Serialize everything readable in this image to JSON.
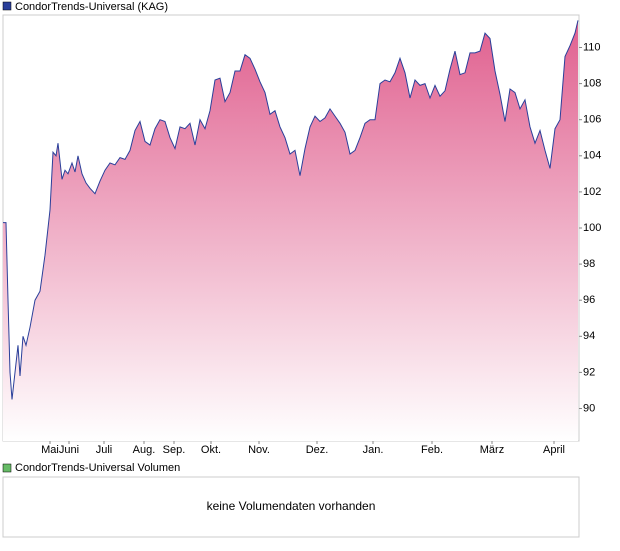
{
  "chart_data": {
    "type": "area",
    "x": [
      0,
      3,
      5,
      7,
      9,
      12,
      15,
      17,
      20,
      23,
      27,
      32,
      37,
      42,
      47,
      50,
      53,
      55,
      59,
      62,
      65,
      69,
      72,
      75,
      79,
      83,
      87,
      92,
      97,
      102,
      107,
      112,
      117,
      122,
      127,
      132,
      137,
      142,
      147,
      152,
      157,
      162,
      167,
      172,
      177,
      182,
      187,
      192,
      197,
      202,
      207,
      212,
      217,
      222,
      227,
      232,
      237,
      242,
      247,
      252,
      257,
      262,
      267,
      272,
      277,
      282,
      287,
      292,
      297,
      302,
      307,
      312,
      317,
      322,
      327,
      332,
      337,
      342,
      347,
      352,
      357,
      362,
      367,
      372,
      377,
      382,
      387,
      392,
      397,
      402,
      407,
      412,
      417,
      422,
      427,
      432,
      437,
      442,
      447,
      452,
      457,
      462,
      467,
      472,
      477,
      482,
      487,
      492,
      497,
      502,
      507,
      512,
      517,
      522,
      527,
      532,
      537,
      542,
      547,
      552,
      557,
      562,
      567,
      572,
      575
    ],
    "series": [
      {
        "name": "CondorTrends-Universal (KAG)",
        "color": "#2a3f9a",
        "values": [
          100.3,
          100.3,
          96,
          92,
          90.5,
          92,
          93.5,
          91.8,
          94,
          93.5,
          94.5,
          96,
          96.5,
          98.5,
          101,
          104.2,
          104,
          104.7,
          102.7,
          103.2,
          103,
          103.6,
          103.1,
          104,
          103,
          102.5,
          102.2,
          101.9,
          102.6,
          103.2,
          103.6,
          103.5,
          103.9,
          103.8,
          104.3,
          105.4,
          105.9,
          104.8,
          104.6,
          105.5,
          106,
          105.9,
          105,
          104.4,
          105.6,
          105.5,
          105.8,
          104.6,
          106,
          105.5,
          106.5,
          108.2,
          108.3,
          107,
          107.5,
          108.7,
          108.7,
          109.6,
          109.4,
          108.8,
          108.1,
          107.5,
          106.3,
          106.5,
          105.6,
          105,
          104.1,
          104.3,
          102.9,
          104.4,
          105.6,
          106.2,
          105.9,
          106.1,
          106.6,
          106.2,
          105.8,
          105.3,
          104.1,
          104.3,
          105,
          105.8,
          106,
          106,
          108,
          108.2,
          108.1,
          108.6,
          109.4,
          108.6,
          107.2,
          108.2,
          107.9,
          108,
          107.2,
          107.9,
          107.3,
          107.6,
          108.8,
          109.8,
          108.5,
          108.6,
          109.7,
          109.7,
          109.8,
          110.8,
          110.5,
          108.7,
          107.4,
          105.9,
          107.7,
          107.5,
          106.6,
          107.1,
          105.6,
          104.7,
          105.4,
          104.3,
          103.3,
          105.5,
          106,
          109.5,
          110.1,
          110.8,
          111.5
        ]
      }
    ],
    "fill_top": "#e0608f",
    "fill_bottom": "#ffffff",
    "xlim": [
      0,
      576
    ],
    "xticks": [
      {
        "value": 47,
        "label": "Mai"
      },
      {
        "value": 66,
        "label": "Juni"
      },
      {
        "value": 101,
        "label": "Juli"
      },
      {
        "value": 141,
        "label": "Aug."
      },
      {
        "value": 171,
        "label": "Sep."
      },
      {
        "value": 208,
        "label": "Okt."
      },
      {
        "value": 256,
        "label": "Nov."
      },
      {
        "value": 314,
        "label": "Dez."
      },
      {
        "value": 370,
        "label": "Jan."
      },
      {
        "value": 429,
        "label": "Feb."
      },
      {
        "value": 489,
        "label": "März"
      },
      {
        "value": 551,
        "label": "April"
      }
    ],
    "ylim": [
      88.2,
      111.8
    ],
    "yticks": [
      90,
      92,
      94,
      96,
      98,
      100,
      102,
      104,
      106,
      108,
      110
    ]
  },
  "volume_panel": {
    "legend": "CondorTrends-Universal Volumen",
    "color": "#66bb66",
    "message": "keine Volumendaten vorhanden"
  }
}
